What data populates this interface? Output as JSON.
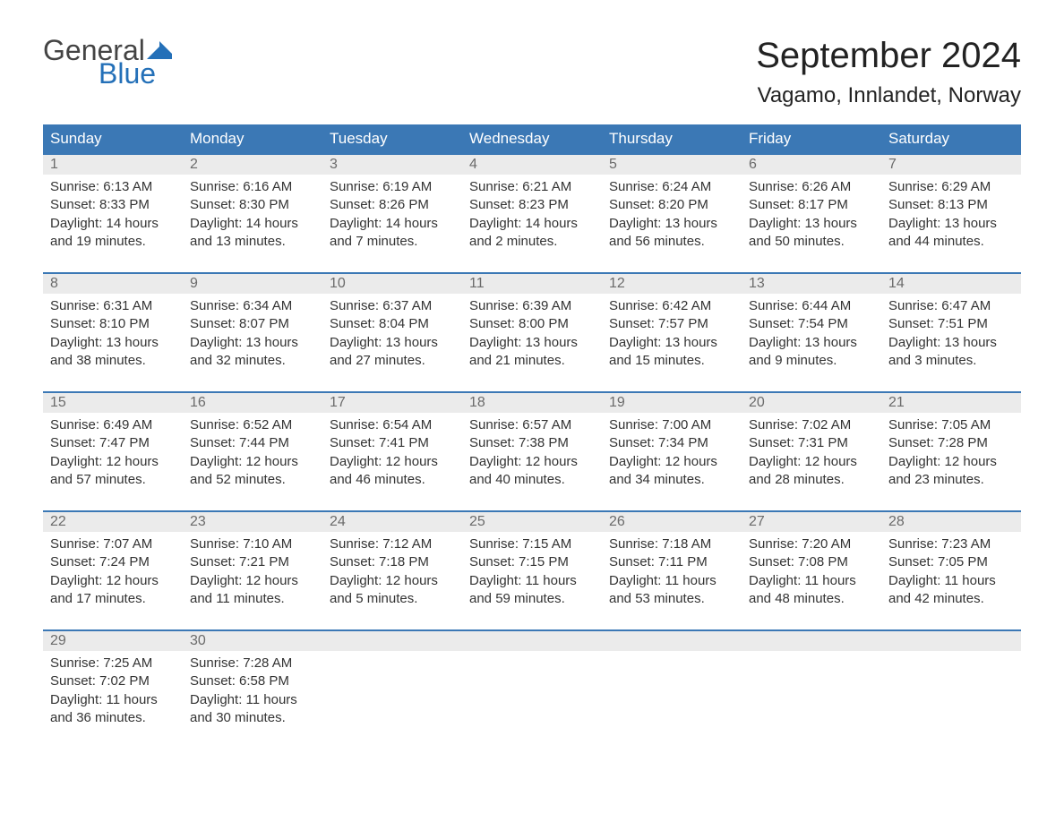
{
  "logo": {
    "general": "General",
    "blue": "Blue",
    "flag_color": "#2470b8"
  },
  "title": "September 2024",
  "location": "Vagamo, Innlandet, Norway",
  "colors": {
    "header_bg": "#3b78b5",
    "header_text": "#ffffff",
    "daynum_bg": "#ebebeb",
    "daynum_text": "#6b6b6b",
    "body_text": "#333333",
    "border_top": "#3b78b5"
  },
  "weekdays": [
    "Sunday",
    "Monday",
    "Tuesday",
    "Wednesday",
    "Thursday",
    "Friday",
    "Saturday"
  ],
  "weeks": [
    [
      {
        "n": "1",
        "sunrise": "Sunrise: 6:13 AM",
        "sunset": "Sunset: 8:33 PM",
        "d1": "Daylight: 14 hours",
        "d2": "and 19 minutes."
      },
      {
        "n": "2",
        "sunrise": "Sunrise: 6:16 AM",
        "sunset": "Sunset: 8:30 PM",
        "d1": "Daylight: 14 hours",
        "d2": "and 13 minutes."
      },
      {
        "n": "3",
        "sunrise": "Sunrise: 6:19 AM",
        "sunset": "Sunset: 8:26 PM",
        "d1": "Daylight: 14 hours",
        "d2": "and 7 minutes."
      },
      {
        "n": "4",
        "sunrise": "Sunrise: 6:21 AM",
        "sunset": "Sunset: 8:23 PM",
        "d1": "Daylight: 14 hours",
        "d2": "and 2 minutes."
      },
      {
        "n": "5",
        "sunrise": "Sunrise: 6:24 AM",
        "sunset": "Sunset: 8:20 PM",
        "d1": "Daylight: 13 hours",
        "d2": "and 56 minutes."
      },
      {
        "n": "6",
        "sunrise": "Sunrise: 6:26 AM",
        "sunset": "Sunset: 8:17 PM",
        "d1": "Daylight: 13 hours",
        "d2": "and 50 minutes."
      },
      {
        "n": "7",
        "sunrise": "Sunrise: 6:29 AM",
        "sunset": "Sunset: 8:13 PM",
        "d1": "Daylight: 13 hours",
        "d2": "and 44 minutes."
      }
    ],
    [
      {
        "n": "8",
        "sunrise": "Sunrise: 6:31 AM",
        "sunset": "Sunset: 8:10 PM",
        "d1": "Daylight: 13 hours",
        "d2": "and 38 minutes."
      },
      {
        "n": "9",
        "sunrise": "Sunrise: 6:34 AM",
        "sunset": "Sunset: 8:07 PM",
        "d1": "Daylight: 13 hours",
        "d2": "and 32 minutes."
      },
      {
        "n": "10",
        "sunrise": "Sunrise: 6:37 AM",
        "sunset": "Sunset: 8:04 PM",
        "d1": "Daylight: 13 hours",
        "d2": "and 27 minutes."
      },
      {
        "n": "11",
        "sunrise": "Sunrise: 6:39 AM",
        "sunset": "Sunset: 8:00 PM",
        "d1": "Daylight: 13 hours",
        "d2": "and 21 minutes."
      },
      {
        "n": "12",
        "sunrise": "Sunrise: 6:42 AM",
        "sunset": "Sunset: 7:57 PM",
        "d1": "Daylight: 13 hours",
        "d2": "and 15 minutes."
      },
      {
        "n": "13",
        "sunrise": "Sunrise: 6:44 AM",
        "sunset": "Sunset: 7:54 PM",
        "d1": "Daylight: 13 hours",
        "d2": "and 9 minutes."
      },
      {
        "n": "14",
        "sunrise": "Sunrise: 6:47 AM",
        "sunset": "Sunset: 7:51 PM",
        "d1": "Daylight: 13 hours",
        "d2": "and 3 minutes."
      }
    ],
    [
      {
        "n": "15",
        "sunrise": "Sunrise: 6:49 AM",
        "sunset": "Sunset: 7:47 PM",
        "d1": "Daylight: 12 hours",
        "d2": "and 57 minutes."
      },
      {
        "n": "16",
        "sunrise": "Sunrise: 6:52 AM",
        "sunset": "Sunset: 7:44 PM",
        "d1": "Daylight: 12 hours",
        "d2": "and 52 minutes."
      },
      {
        "n": "17",
        "sunrise": "Sunrise: 6:54 AM",
        "sunset": "Sunset: 7:41 PM",
        "d1": "Daylight: 12 hours",
        "d2": "and 46 minutes."
      },
      {
        "n": "18",
        "sunrise": "Sunrise: 6:57 AM",
        "sunset": "Sunset: 7:38 PM",
        "d1": "Daylight: 12 hours",
        "d2": "and 40 minutes."
      },
      {
        "n": "19",
        "sunrise": "Sunrise: 7:00 AM",
        "sunset": "Sunset: 7:34 PM",
        "d1": "Daylight: 12 hours",
        "d2": "and 34 minutes."
      },
      {
        "n": "20",
        "sunrise": "Sunrise: 7:02 AM",
        "sunset": "Sunset: 7:31 PM",
        "d1": "Daylight: 12 hours",
        "d2": "and 28 minutes."
      },
      {
        "n": "21",
        "sunrise": "Sunrise: 7:05 AM",
        "sunset": "Sunset: 7:28 PM",
        "d1": "Daylight: 12 hours",
        "d2": "and 23 minutes."
      }
    ],
    [
      {
        "n": "22",
        "sunrise": "Sunrise: 7:07 AM",
        "sunset": "Sunset: 7:24 PM",
        "d1": "Daylight: 12 hours",
        "d2": "and 17 minutes."
      },
      {
        "n": "23",
        "sunrise": "Sunrise: 7:10 AM",
        "sunset": "Sunset: 7:21 PM",
        "d1": "Daylight: 12 hours",
        "d2": "and 11 minutes."
      },
      {
        "n": "24",
        "sunrise": "Sunrise: 7:12 AM",
        "sunset": "Sunset: 7:18 PM",
        "d1": "Daylight: 12 hours",
        "d2": "and 5 minutes."
      },
      {
        "n": "25",
        "sunrise": "Sunrise: 7:15 AM",
        "sunset": "Sunset: 7:15 PM",
        "d1": "Daylight: 11 hours",
        "d2": "and 59 minutes."
      },
      {
        "n": "26",
        "sunrise": "Sunrise: 7:18 AM",
        "sunset": "Sunset: 7:11 PM",
        "d1": "Daylight: 11 hours",
        "d2": "and 53 minutes."
      },
      {
        "n": "27",
        "sunrise": "Sunrise: 7:20 AM",
        "sunset": "Sunset: 7:08 PM",
        "d1": "Daylight: 11 hours",
        "d2": "and 48 minutes."
      },
      {
        "n": "28",
        "sunrise": "Sunrise: 7:23 AM",
        "sunset": "Sunset: 7:05 PM",
        "d1": "Daylight: 11 hours",
        "d2": "and 42 minutes."
      }
    ],
    [
      {
        "n": "29",
        "sunrise": "Sunrise: 7:25 AM",
        "sunset": "Sunset: 7:02 PM",
        "d1": "Daylight: 11 hours",
        "d2": "and 36 minutes."
      },
      {
        "n": "30",
        "sunrise": "Sunrise: 7:28 AM",
        "sunset": "Sunset: 6:58 PM",
        "d1": "Daylight: 11 hours",
        "d2": "and 30 minutes."
      },
      null,
      null,
      null,
      null,
      null
    ]
  ]
}
